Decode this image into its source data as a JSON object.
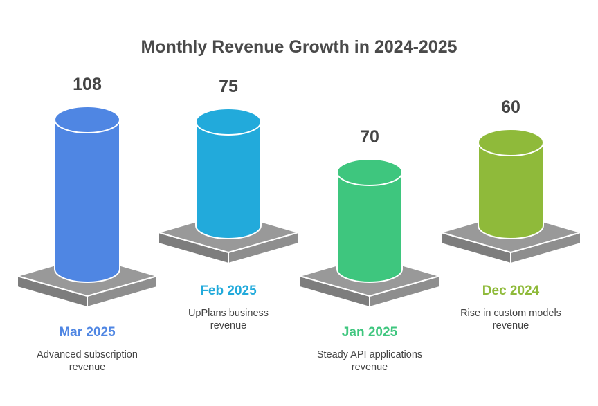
{
  "chart_data": {
    "type": "bar",
    "title": "Monthly Revenue Growth in 2024-2025",
    "categories": [
      "Mar 2025",
      "Feb 2025",
      "Jan 2025",
      "Dec 2024"
    ],
    "values": [
      108,
      75,
      70,
      60
    ],
    "value_labels": [
      "108",
      "75",
      "70",
      "60"
    ],
    "descriptions": [
      [
        "Advanced subscription",
        "revenue"
      ],
      [
        "UpPlans business",
        "revenue"
      ],
      [
        "Steady API applications",
        "revenue"
      ],
      [
        "Rise in custom models",
        "revenue"
      ]
    ],
    "colors": [
      "#4f86e3",
      "#22aadb",
      "#3ec67e",
      "#8fba3a"
    ],
    "base_color": "#999999"
  }
}
